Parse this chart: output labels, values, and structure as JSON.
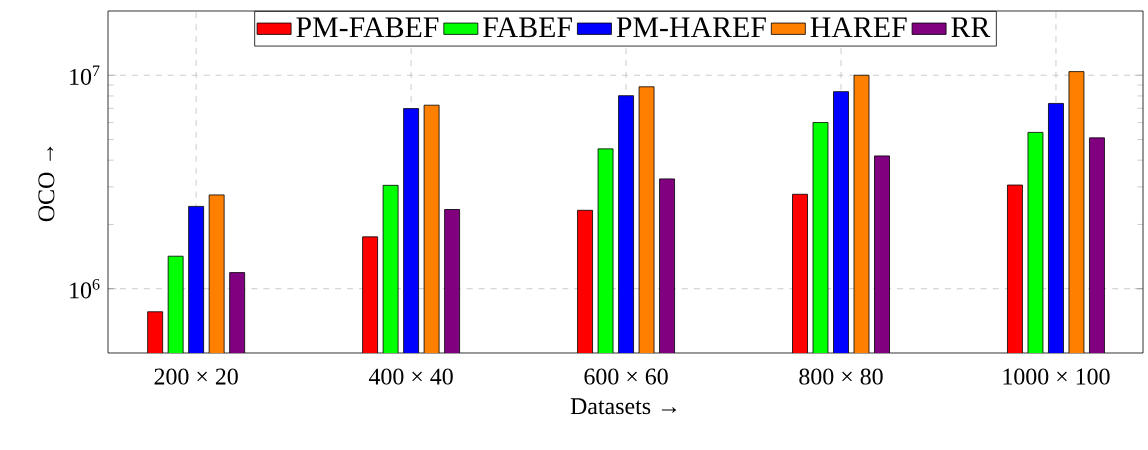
{
  "chart_data": {
    "type": "bar",
    "xlabel": "Datasets →",
    "ylabel": "OCO →",
    "categories": [
      "200 × 20",
      "400 × 40",
      "600 × 60",
      "800 × 80",
      "1000 × 100"
    ],
    "series": [
      {
        "name": "PM-FABEF",
        "color": "#ff0000",
        "values": [
          780000,
          1750000,
          2330000,
          2770000,
          3060000
        ]
      },
      {
        "name": "FABEF",
        "color": "#00ff00",
        "values": [
          1420000,
          3050000,
          4520000,
          6010000,
          5400000
        ]
      },
      {
        "name": "PM-HAREF",
        "color": "#0000ff",
        "values": [
          2430000,
          6980000,
          8020000,
          8380000,
          7380000
        ]
      },
      {
        "name": "HAREF",
        "color": "#ff8000",
        "values": [
          2750000,
          7240000,
          8830000,
          10000000,
          10400000
        ]
      },
      {
        "name": "RR",
        "color": "#800080",
        "values": [
          1190000,
          2350000,
          3270000,
          4190000,
          5090000
        ]
      }
    ],
    "log": "y",
    "ylim": [
      500000,
      20000000
    ],
    "yticks": [
      {
        "value": 1000000,
        "label": "10$^{6}$"
      },
      {
        "value": 10000000,
        "label": "10$^{7}$"
      }
    ],
    "grid": true,
    "legend": "top"
  }
}
